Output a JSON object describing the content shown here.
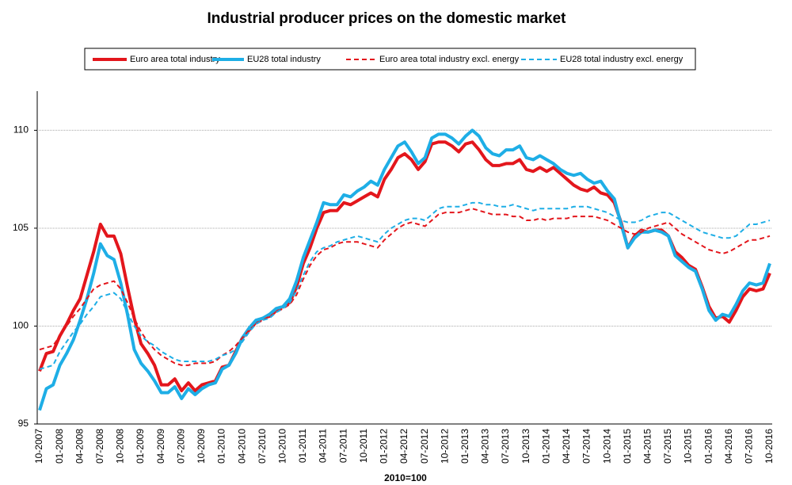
{
  "chart_data": {
    "type": "line",
    "title": "Industrial producer prices on the domestic market",
    "x_label": "2010=100",
    "categories": [
      "10-2007",
      null,
      null,
      "01-2008",
      null,
      null,
      "04-2008",
      null,
      null,
      "07-2008",
      null,
      null,
      "10-2008",
      null,
      null,
      "01-2009",
      null,
      null,
      "04-2009",
      null,
      null,
      "07-2009",
      null,
      null,
      "10-2009",
      null,
      null,
      "01-2010",
      null,
      null,
      "04-2010",
      null,
      null,
      "07-2010",
      null,
      null,
      "10-2010",
      null,
      null,
      "01-2011",
      null,
      null,
      "04-2011",
      null,
      null,
      "07-2011",
      null,
      null,
      "10-2011",
      null,
      null,
      "01-2012",
      null,
      null,
      "04-2012",
      null,
      null,
      "07-2012",
      null,
      null,
      "10-2012",
      null,
      null,
      "01-2013",
      null,
      null,
      "04-2013",
      null,
      null,
      "07-2013",
      null,
      null,
      "10-2013",
      null,
      null,
      "01-2014",
      null,
      null,
      "04-2014",
      null,
      null,
      "07-2014",
      null,
      null,
      "10-2014",
      null,
      null,
      "01-2015",
      null,
      null,
      "04-2015",
      null,
      null,
      "07-2015",
      null,
      null,
      "10-2015",
      null,
      null,
      "01-2016",
      null,
      null,
      "04-2016",
      null,
      null,
      "07-2016",
      null,
      null,
      "10-2016"
    ],
    "series": [
      {
        "name": "Euro area total industry",
        "color": "#e3161c",
        "dashed": false,
        "values": [
          97.7,
          98.6,
          98.7,
          99.5,
          100.1,
          100.8,
          101.4,
          102.6,
          103.8,
          105.2,
          104.6,
          104.6,
          103.7,
          102.0,
          100.4,
          99.1,
          98.6,
          98.0,
          97.0,
          97.0,
          97.3,
          96.7,
          97.1,
          96.7,
          97.0,
          97.1,
          97.2,
          97.9,
          98.0,
          98.7,
          99.4,
          99.8,
          100.2,
          100.4,
          100.5,
          100.8,
          101.0,
          101.2,
          102.0,
          103.2,
          104.0,
          105.0,
          105.8,
          105.9,
          105.9,
          106.3,
          106.2,
          106.4,
          106.6,
          106.8,
          106.6,
          107.5,
          108.0,
          108.6,
          108.8,
          108.5,
          108.0,
          108.4,
          109.3,
          109.4,
          109.4,
          109.2,
          108.9,
          109.3,
          109.4,
          109.0,
          108.5,
          108.2,
          108.2,
          108.3,
          108.3,
          108.5,
          108.0,
          107.9,
          108.1,
          107.9,
          108.1,
          107.8,
          107.5,
          107.2,
          107.0,
          106.9,
          107.1,
          106.8,
          106.7,
          106.3,
          105.3,
          104.0,
          104.6,
          104.9,
          104.8,
          104.9,
          104.9,
          104.6,
          103.8,
          103.5,
          103.1,
          102.9,
          102.0,
          101.0,
          100.4,
          100.5,
          100.2,
          100.8,
          101.5,
          101.9,
          101.8,
          101.9,
          102.7
        ]
      },
      {
        "name": "EU28 total industry",
        "color": "#1eaee6",
        "dashed": false,
        "values": [
          95.7,
          96.8,
          97.0,
          98.0,
          98.6,
          99.3,
          100.3,
          101.4,
          102.7,
          104.2,
          103.6,
          103.4,
          102.2,
          100.6,
          98.8,
          98.1,
          97.7,
          97.2,
          96.6,
          96.6,
          96.9,
          96.3,
          96.8,
          96.5,
          96.8,
          97.0,
          97.1,
          97.8,
          98.0,
          98.6,
          99.4,
          99.9,
          100.3,
          100.4,
          100.6,
          100.9,
          101.0,
          101.4,
          102.3,
          103.5,
          104.4,
          105.3,
          106.3,
          106.2,
          106.2,
          106.7,
          106.6,
          106.9,
          107.1,
          107.4,
          107.2,
          108.0,
          108.6,
          109.2,
          109.4,
          108.9,
          108.3,
          108.6,
          109.6,
          109.8,
          109.8,
          109.6,
          109.3,
          109.7,
          110.0,
          109.7,
          109.1,
          108.8,
          108.7,
          109.0,
          109.0,
          109.2,
          108.6,
          108.5,
          108.7,
          108.5,
          108.3,
          108.0,
          107.8,
          107.7,
          107.8,
          107.5,
          107.3,
          107.4,
          106.9,
          106.5,
          105.2,
          104.0,
          104.5,
          104.8,
          104.8,
          104.9,
          104.8,
          104.6,
          103.6,
          103.3,
          103.0,
          102.8,
          101.9,
          100.8,
          100.3,
          100.6,
          100.5,
          101.1,
          101.8,
          102.2,
          102.1,
          102.2,
          103.2
        ]
      },
      {
        "name": "Euro area total industry excl. energy",
        "color": "#e3161c",
        "dashed": true,
        "values": [
          98.8,
          98.9,
          99.0,
          99.5,
          100.0,
          100.5,
          100.9,
          101.4,
          101.9,
          102.1,
          102.2,
          102.3,
          101.9,
          101.2,
          100.4,
          99.7,
          99.2,
          98.8,
          98.5,
          98.3,
          98.1,
          98.0,
          98.0,
          98.1,
          98.1,
          98.1,
          98.2,
          98.5,
          98.7,
          99.0,
          99.4,
          99.8,
          100.1,
          100.3,
          100.5,
          100.7,
          100.9,
          101.1,
          101.6,
          102.4,
          103.1,
          103.6,
          103.9,
          104.0,
          104.2,
          104.3,
          104.3,
          104.3,
          104.2,
          104.1,
          104.0,
          104.4,
          104.7,
          105.0,
          105.2,
          105.3,
          105.2,
          105.1,
          105.4,
          105.7,
          105.8,
          105.8,
          105.8,
          105.9,
          106.0,
          105.9,
          105.8,
          105.7,
          105.7,
          105.7,
          105.6,
          105.6,
          105.4,
          105.4,
          105.5,
          105.4,
          105.5,
          105.5,
          105.5,
          105.6,
          105.6,
          105.6,
          105.6,
          105.5,
          105.4,
          105.2,
          105.0,
          104.8,
          104.7,
          104.8,
          105.0,
          105.1,
          105.2,
          105.3,
          105.0,
          104.7,
          104.5,
          104.3,
          104.1,
          103.9,
          103.8,
          103.7,
          103.8,
          104.0,
          104.2,
          104.4,
          104.4,
          104.5,
          104.6
        ]
      },
      {
        "name": "EU28 total industry excl. energy",
        "color": "#1eaee6",
        "dashed": true,
        "values": [
          97.8,
          97.9,
          98.0,
          98.7,
          99.2,
          99.7,
          100.1,
          100.6,
          101.0,
          101.5,
          101.6,
          101.7,
          101.4,
          100.7,
          100.0,
          99.5,
          99.2,
          99.0,
          98.7,
          98.5,
          98.3,
          98.2,
          98.2,
          98.2,
          98.2,
          98.2,
          98.3,
          98.5,
          98.6,
          98.8,
          99.2,
          99.7,
          100.1,
          100.3,
          100.4,
          100.7,
          100.9,
          101.2,
          101.8,
          102.6,
          103.3,
          103.8,
          104.0,
          104.1,
          104.3,
          104.4,
          104.5,
          104.6,
          104.5,
          104.4,
          104.3,
          104.7,
          105.0,
          105.2,
          105.4,
          105.5,
          105.5,
          105.4,
          105.7,
          106.0,
          106.1,
          106.1,
          106.1,
          106.2,
          106.3,
          106.3,
          106.2,
          106.2,
          106.1,
          106.1,
          106.2,
          106.1,
          106.0,
          105.9,
          106.0,
          106.0,
          106.0,
          106.0,
          106.0,
          106.1,
          106.1,
          106.1,
          106.0,
          105.9,
          105.8,
          105.6,
          105.4,
          105.3,
          105.3,
          105.4,
          105.6,
          105.7,
          105.8,
          105.8,
          105.6,
          105.4,
          105.2,
          105.0,
          104.8,
          104.7,
          104.6,
          104.5,
          104.5,
          104.6,
          104.9,
          105.2,
          105.2,
          105.3,
          105.4
        ]
      }
    ],
    "ylim": [
      95,
      112
    ],
    "yticks": [
      95,
      100,
      105,
      110
    ],
    "grid": true
  }
}
